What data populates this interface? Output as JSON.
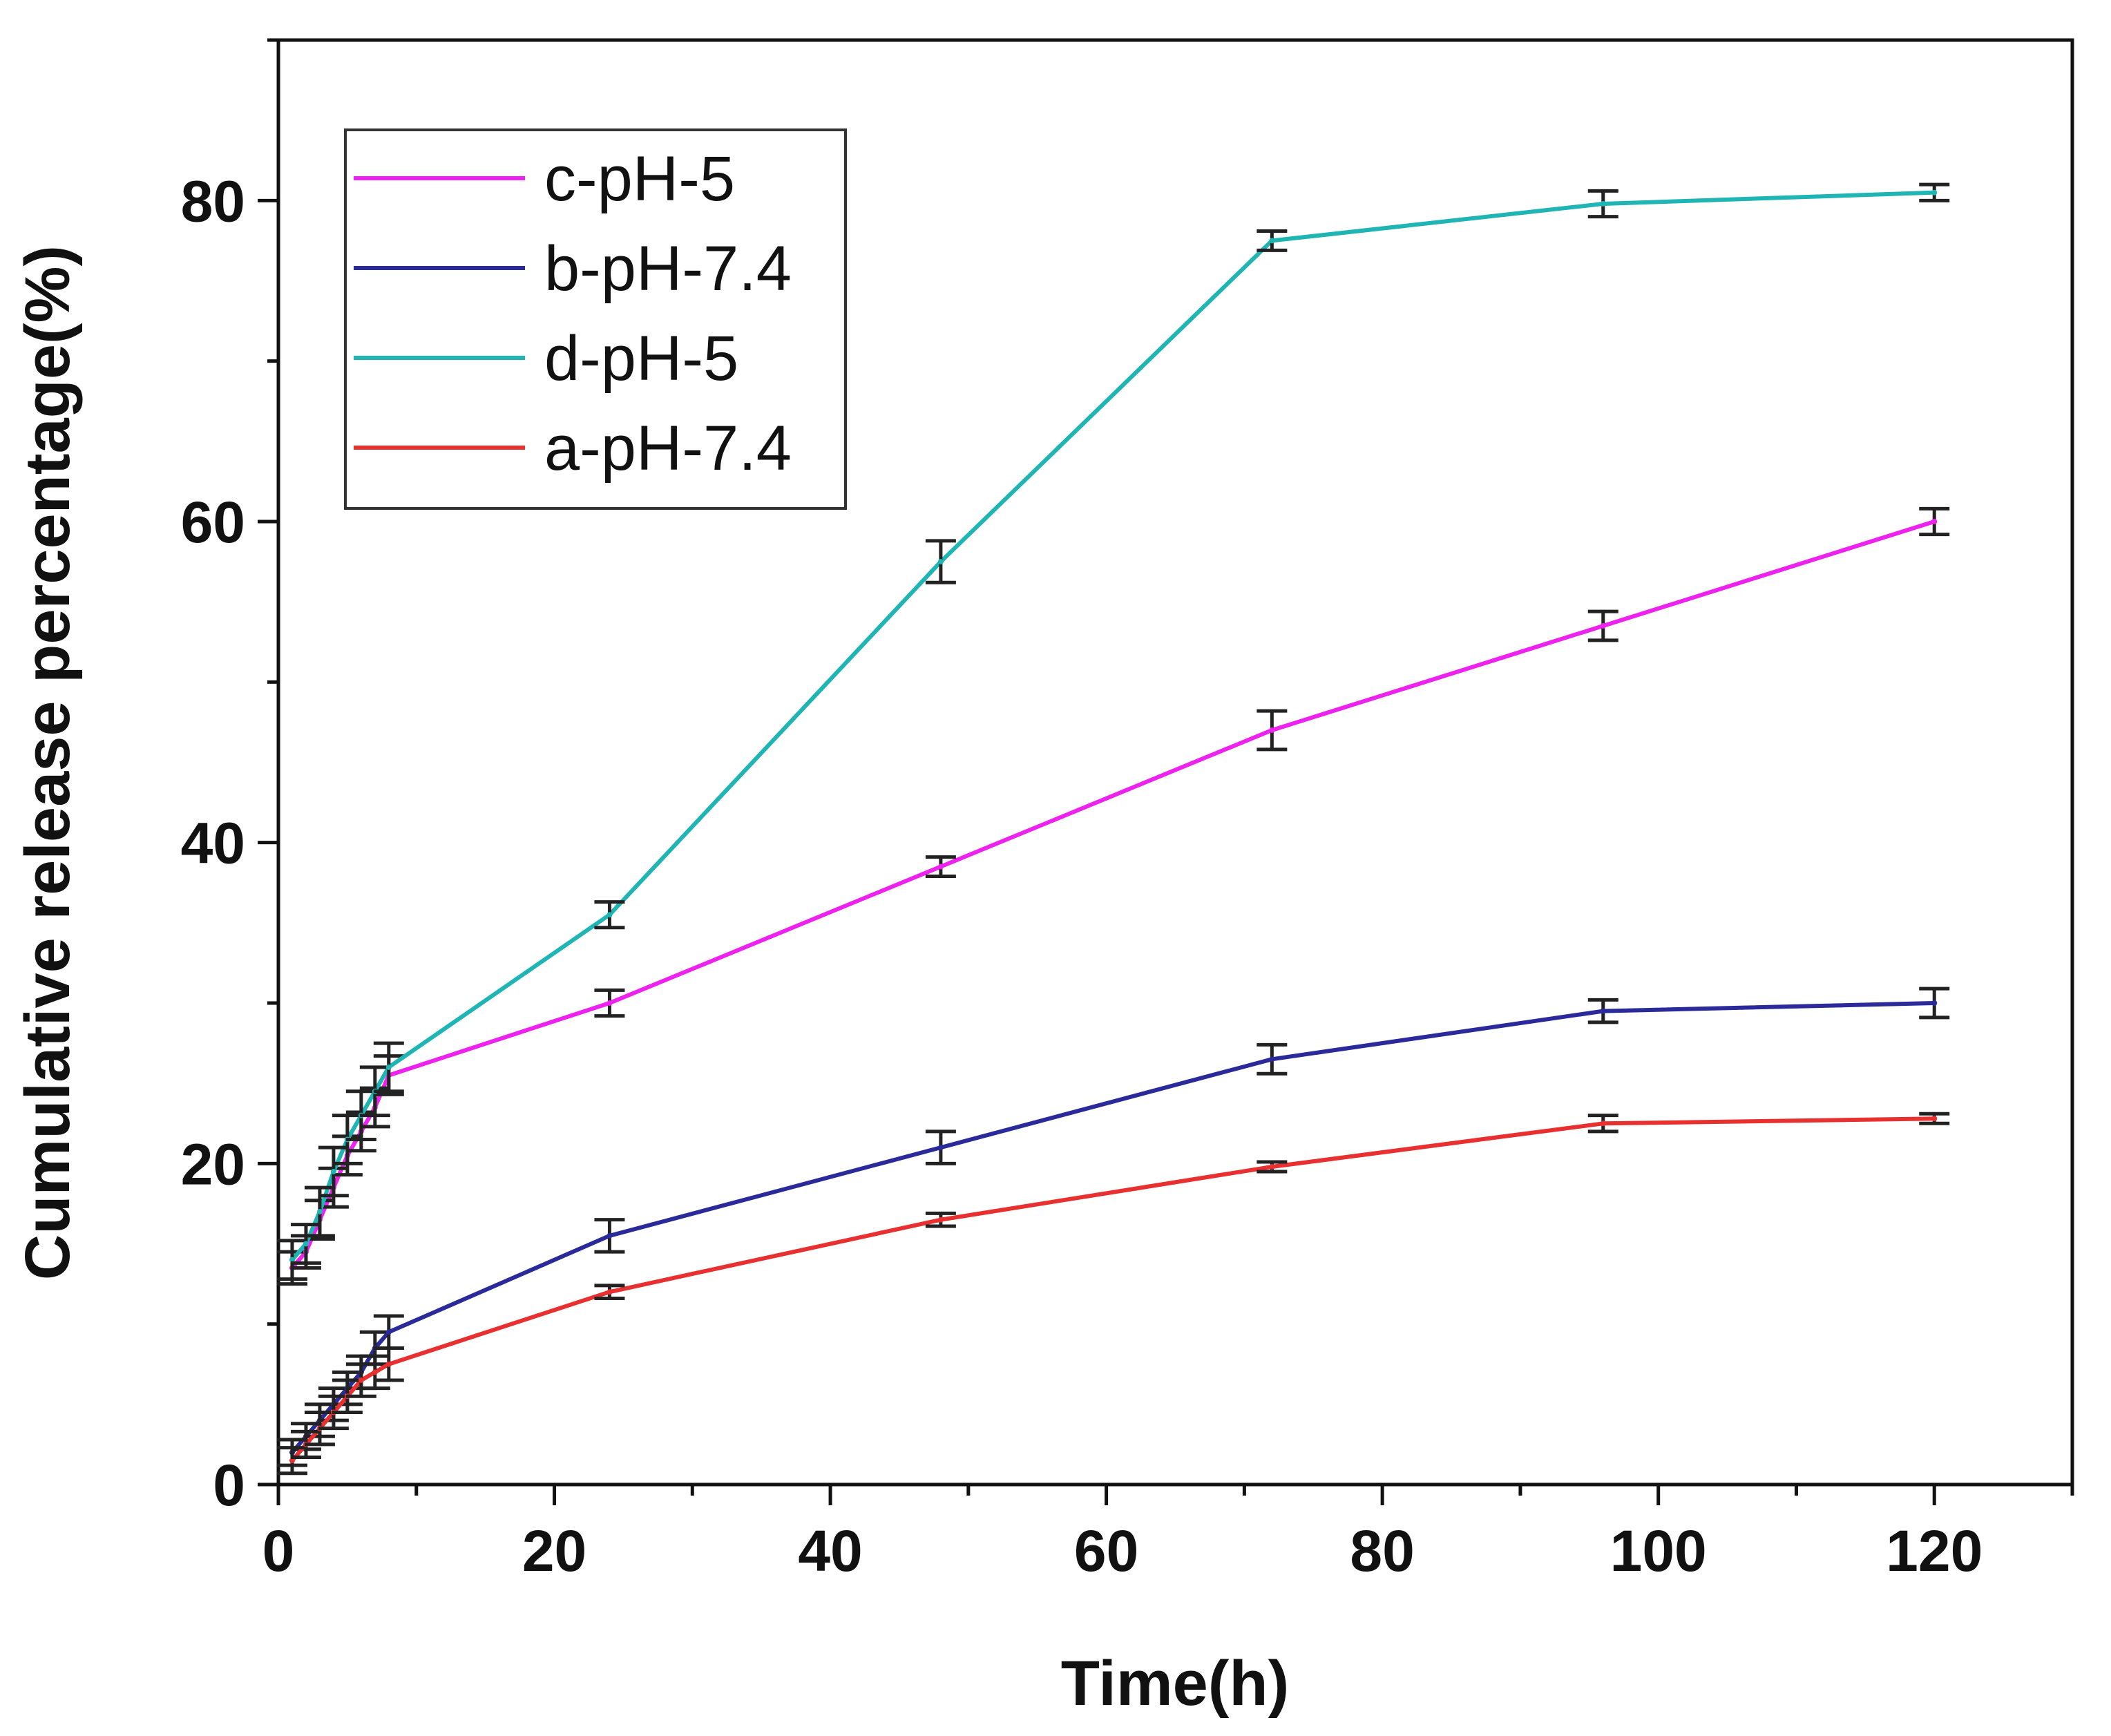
{
  "chart_data": {
    "type": "line",
    "title": "",
    "xlabel": "Time(h)",
    "ylabel": "Cumulative release percentage(%)",
    "xlim": [
      0,
      130
    ],
    "ylim": [
      0,
      90
    ],
    "xticks": [
      0,
      20,
      40,
      60,
      80,
      100,
      120
    ],
    "yticks": [
      0,
      20,
      40,
      60,
      80
    ],
    "x_minor_step": 10,
    "y_minor_step": 10,
    "grid": false,
    "legend_position": "top-left",
    "series": [
      {
        "name": "c-pH-5",
        "color": "#ee22ee",
        "x": [
          1,
          2,
          3,
          4,
          5,
          6,
          7,
          8,
          24,
          48,
          72,
          96,
          120
        ],
        "values": [
          13.5,
          14.5,
          16.5,
          18.5,
          20.5,
          22.0,
          23.5,
          25.5,
          30.0,
          38.5,
          47.0,
          53.5,
          60.0
        ],
        "errors": [
          1.0,
          1.0,
          1.2,
          1.2,
          1.2,
          1.2,
          1.2,
          1.2,
          0.8,
          0.6,
          1.2,
          0.9,
          0.8
        ]
      },
      {
        "name": "b-pH-7.4",
        "color": "#2a2a9a",
        "x": [
          1,
          2,
          3,
          4,
          5,
          6,
          7,
          8,
          24,
          48,
          72,
          96,
          120
        ],
        "values": [
          2.0,
          3.0,
          4.0,
          5.0,
          6.0,
          7.0,
          8.5,
          9.5,
          15.5,
          21.0,
          26.5,
          29.5,
          30.0
        ],
        "errors": [
          0.8,
          0.8,
          1.0,
          1.0,
          1.0,
          1.0,
          1.0,
          1.0,
          1.0,
          1.0,
          0.9,
          0.7,
          0.9
        ]
      },
      {
        "name": "d-pH-5",
        "color": "#1fb5b5",
        "x": [
          1,
          2,
          3,
          4,
          5,
          6,
          7,
          8,
          24,
          48,
          72,
          96,
          120
        ],
        "values": [
          14.0,
          15.0,
          17.0,
          19.5,
          21.5,
          23.0,
          24.5,
          26.0,
          35.5,
          57.5,
          77.5,
          79.8,
          80.5
        ],
        "errors": [
          1.2,
          1.2,
          1.5,
          1.5,
          1.5,
          1.5,
          1.5,
          1.5,
          0.8,
          1.3,
          0.6,
          0.8,
          0.5
        ]
      },
      {
        "name": "a-pH-7.4",
        "color": "#e83030",
        "x": [
          1,
          2,
          3,
          4,
          5,
          6,
          7,
          8,
          24,
          48,
          72,
          96,
          120
        ],
        "values": [
          1.5,
          2.5,
          3.5,
          4.5,
          5.5,
          6.5,
          7.0,
          7.5,
          12.0,
          16.5,
          19.8,
          22.5,
          22.8
        ],
        "errors": [
          0.8,
          0.8,
          1.0,
          1.0,
          1.0,
          1.0,
          1.0,
          1.0,
          0.4,
          0.4,
          0.3,
          0.5,
          0.3
        ]
      }
    ]
  }
}
